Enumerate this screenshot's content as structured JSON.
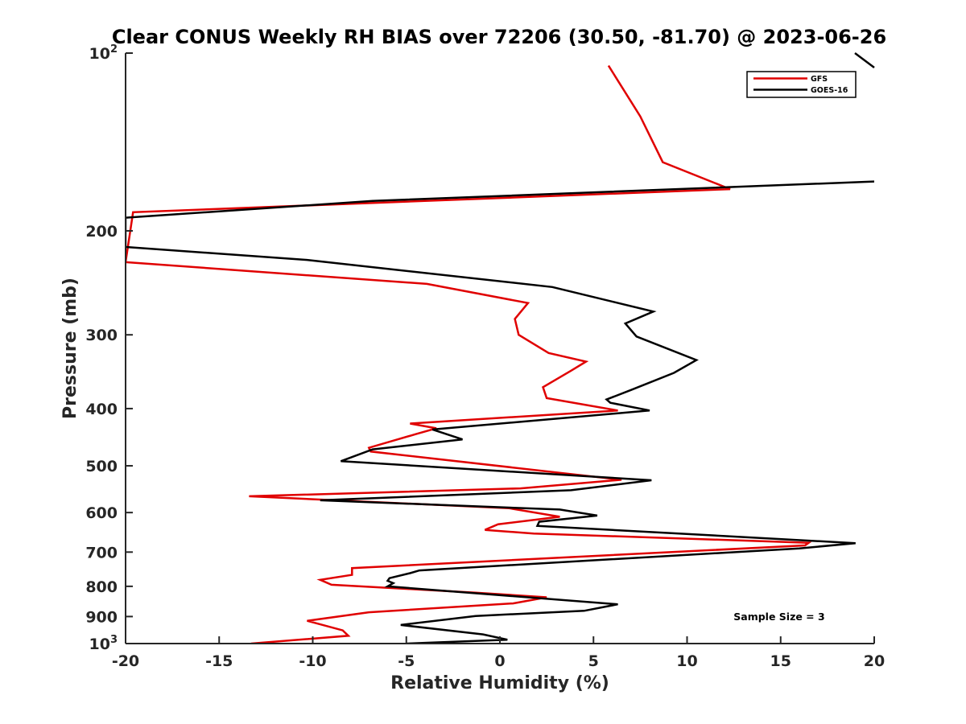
{
  "chart_data": {
    "type": "line",
    "title": "Clear CONUS Weekly RH BIAS over 72206 (30.50, -81.70) @ 2023-06-26",
    "xlabel": "Relative Humidity (%)",
    "ylabel": "Pressure (mb)",
    "xlim": [
      -20,
      20
    ],
    "ylim": [
      1000,
      100
    ],
    "yscale": "log",
    "y_reversed": true,
    "grid": false,
    "legend_position": "top-right",
    "x_ticks": [
      "-20",
      "-15",
      "-10",
      "-5",
      "0",
      "5",
      "10",
      "15",
      "20"
    ],
    "y_ticks": [
      {
        "value": 100,
        "label": "10",
        "sup": "2"
      },
      {
        "value": 200,
        "label": "200",
        "sup": ""
      },
      {
        "value": 300,
        "label": "300",
        "sup": ""
      },
      {
        "value": 400,
        "label": "400",
        "sup": ""
      },
      {
        "value": 500,
        "label": "500",
        "sup": ""
      },
      {
        "value": 600,
        "label": "600",
        "sup": ""
      },
      {
        "value": 700,
        "label": "700",
        "sup": ""
      },
      {
        "value": 800,
        "label": "800",
        "sup": ""
      },
      {
        "value": 900,
        "label": "900",
        "sup": ""
      },
      {
        "value": 1000,
        "label": "10",
        "sup": "3"
      }
    ],
    "annotation": "Sample Size = 3",
    "series": [
      {
        "name": "GFS",
        "color": "#e00000",
        "points": [
          [
            -13.3,
            1000
          ],
          [
            -8.1,
            970
          ],
          [
            -8.4,
            950
          ],
          [
            -10.3,
            915
          ],
          [
            -7.0,
            885
          ],
          [
            0.7,
            855
          ],
          [
            2.5,
            835
          ],
          [
            -1.3,
            820
          ],
          [
            -9.0,
            795
          ],
          [
            -9.6,
            780
          ],
          [
            -7.9,
            765
          ],
          [
            -7.9,
            745
          ],
          [
            16.3,
            682
          ],
          [
            16.5,
            675
          ],
          [
            1.8,
            651
          ],
          [
            -0.8,
            642
          ],
          [
            -0.1,
            628
          ],
          [
            3.2,
            610
          ],
          [
            0.5,
            590
          ],
          [
            -13.4,
            563
          ],
          [
            1.1,
            546
          ],
          [
            6.5,
            528
          ],
          [
            -6.9,
            473
          ],
          [
            -7.0,
            466
          ],
          [
            -4.5,
            442
          ],
          [
            -3.4,
            432
          ],
          [
            -4.8,
            424
          ],
          [
            6.3,
            403
          ],
          [
            2.5,
            384
          ],
          [
            2.3,
            368
          ],
          [
            3.8,
            345
          ],
          [
            4.6,
            333
          ],
          [
            2.6,
            322
          ],
          [
            1.0,
            300
          ],
          [
            0.8,
            282
          ],
          [
            1.5,
            265
          ],
          [
            -3.9,
            246
          ],
          [
            -20.0,
            226
          ],
          [
            -19.6,
            186
          ],
          [
            12.3,
            170
          ],
          [
            8.7,
            153
          ],
          [
            7.5,
            128
          ],
          [
            5.8,
            105
          ]
        ]
      },
      {
        "name": "GOES-16",
        "color": "#000000",
        "points": [
          [
            -5.0,
            1000
          ],
          [
            0.4,
            985
          ],
          [
            -0.9,
            965
          ],
          [
            -5.3,
            930
          ],
          [
            -1.3,
            898
          ],
          [
            4.5,
            880
          ],
          [
            6.3,
            858
          ],
          [
            -6.0,
            800
          ],
          [
            -5.7,
            790
          ],
          [
            -6.0,
            783
          ],
          [
            -5.9,
            775
          ],
          [
            -4.8,
            760
          ],
          [
            -4.3,
            752
          ],
          [
            16.0,
            690
          ],
          [
            19.0,
            676
          ],
          [
            2.0,
            632
          ],
          [
            2.1,
            622
          ],
          [
            5.2,
            607
          ],
          [
            3.2,
            593
          ],
          [
            -9.6,
            572
          ],
          [
            3.8,
            550
          ],
          [
            8.1,
            529
          ],
          [
            -8.5,
            491
          ],
          [
            -6.8,
            469
          ],
          [
            -2.0,
            451
          ],
          [
            -3.6,
            434
          ],
          [
            8.0,
            403
          ],
          [
            5.9,
            391
          ],
          [
            5.7,
            386
          ],
          [
            7.0,
            372
          ],
          [
            9.3,
            348
          ],
          [
            10.5,
            331
          ],
          [
            7.3,
            302
          ],
          [
            6.7,
            287
          ],
          [
            8.2,
            274
          ],
          [
            2.8,
            249
          ],
          [
            -10.3,
            224
          ],
          [
            -20.0,
            213
          ],
          [
            -20.0,
            190
          ],
          [
            -6.8,
            178
          ],
          [
            20.0,
            165
          ]
        ]
      }
    ]
  }
}
